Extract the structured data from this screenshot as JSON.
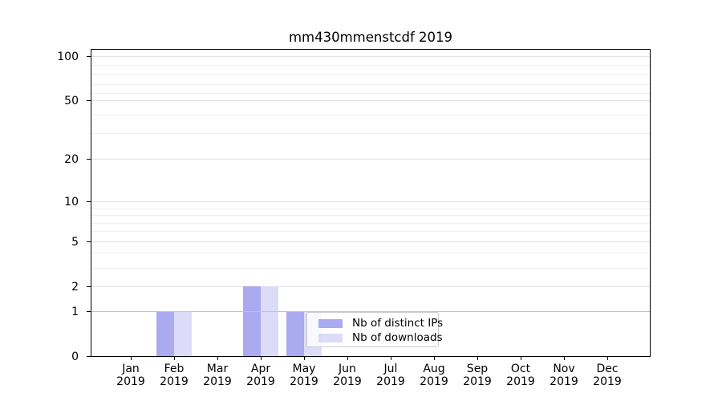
{
  "figure": {
    "title": "mm430mmenstcdf 2019"
  },
  "legend": {
    "items": [
      {
        "label": "Nb of distinct IPs",
        "key": "distinct_ips"
      },
      {
        "label": "Nb of downloads",
        "key": "downloads"
      }
    ]
  },
  "colors": {
    "distinct_ips": "#aaaaf0",
    "downloads": "#dcdcf8",
    "axis": "#000000",
    "grid_major": "#e2e2e2",
    "grid_minor": "#efefef",
    "grid_unity": "#c3c3c3",
    "legend_border": "#cbcbcb"
  },
  "chart_data": {
    "type": "bar",
    "title": "mm430mmenstcdf 2019",
    "categories": [
      "Jan 2019",
      "Feb 2019",
      "Mar 2019",
      "Apr 2019",
      "May 2019",
      "Jun 2019",
      "Jul 2019",
      "Aug 2019",
      "Sep 2019",
      "Oct 2019",
      "Nov 2019",
      "Dec 2019"
    ],
    "series": [
      {
        "name": "Nb of distinct IPs",
        "color": "#aaaaf0",
        "values": [
          0,
          1,
          0,
          2,
          1,
          0,
          0,
          0,
          0,
          0,
          0,
          0
        ]
      },
      {
        "name": "Nb of downloads",
        "color": "#dcdcf8",
        "values": [
          0,
          1,
          0,
          2,
          1,
          0,
          0,
          0,
          0,
          0,
          0,
          0
        ]
      }
    ],
    "xlabel": "",
    "ylabel": "",
    "yscale": "symlog",
    "ylim": [
      0,
      110
    ],
    "y_major_ticks": [
      0,
      1,
      2,
      5,
      10,
      20,
      50,
      100
    ],
    "y_minor_gridlines": [
      3,
      4,
      6,
      7,
      8,
      9,
      30,
      40,
      60,
      70,
      80,
      90
    ],
    "grid": "on",
    "legend_position": "inside lower right of plot"
  }
}
